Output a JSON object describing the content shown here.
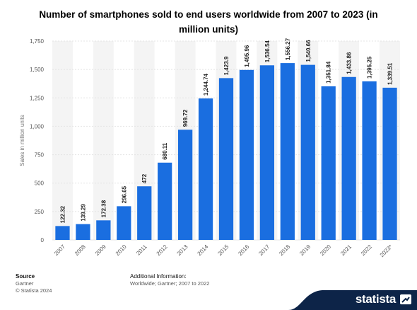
{
  "title": "Number of smartphones sold to end users worldwide from 2007 to 2023 (in million units)",
  "colors": {
    "bar": "#1a6ee0",
    "grid": "#e4e4e4",
    "band": "#f4f4f4",
    "brand_bg": "#0d2448"
  },
  "chart_data": {
    "type": "bar",
    "categories": [
      "2007",
      "2008",
      "2009",
      "2010",
      "2011",
      "2012",
      "2013",
      "2014",
      "2015",
      "2016",
      "2017",
      "2018",
      "2019",
      "2020",
      "2021",
      "2022",
      "2023*"
    ],
    "values": [
      122.32,
      139.29,
      172.38,
      296.65,
      472,
      680.11,
      969.72,
      1244.74,
      1423.9,
      1495.96,
      1536.54,
      1556.27,
      1540.66,
      1351.84,
      1433.86,
      1395.25,
      1339.51
    ],
    "value_labels": [
      "122.32",
      "139.29",
      "172.38",
      "296.65",
      "472",
      "680.11",
      "969.72",
      "1,244.74",
      "1,423.9",
      "1,495.96",
      "1,536.54",
      "1,556.27",
      "1,540.66",
      "1,351.84",
      "1,433.86",
      "1,395.25",
      "1,339.51"
    ],
    "ylabel": "Sales in million units",
    "xlabel": "",
    "ylim": [
      0,
      1750
    ],
    "yticks": [
      0,
      250,
      500,
      750,
      1000,
      1250,
      1500,
      1750
    ],
    "ytick_labels": [
      "0",
      "250",
      "500",
      "750",
      "1,000",
      "1,250",
      "1,500",
      "1,750"
    ],
    "grid": true
  },
  "footer": {
    "source_heading": "Source",
    "source_name": "Gartner",
    "copyright": "© Statista 2024",
    "info_heading": "Additional Information:",
    "info_text": "Worldwide; Gartner; 2007 to 2022"
  },
  "brand": {
    "name": "statista",
    "icon": "statista-logo-icon"
  }
}
